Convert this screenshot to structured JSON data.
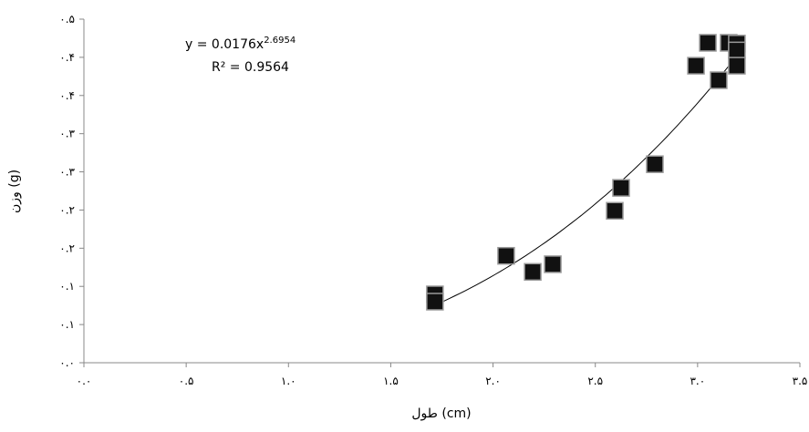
{
  "chart_data": {
    "type": "scatter",
    "x_label": "طول (cm)",
    "y_label": "وزن (g)",
    "x": [
      1.716,
      1.716,
      2.064,
      2.194,
      2.292,
      2.595,
      2.626,
      2.791,
      2.992,
      3.05,
      3.103,
      3.152,
      3.192,
      3.192,
      3.192
    ],
    "values": [
      0.0895,
      0.08,
      0.14,
      0.119,
      0.129,
      0.199,
      0.229,
      0.26,
      0.389,
      0.419,
      0.37,
      0.419,
      0.418,
      0.409,
      0.389
    ],
    "color": "#111111",
    "xlim": [
      0,
      3.5
    ],
    "xticks": [
      {
        "value": 0,
        "label": "۰.۰"
      },
      {
        "value": 0.5,
        "label": "۰.۵"
      },
      {
        "value": 1,
        "label": "۱.۰"
      },
      {
        "value": 1.5,
        "label": "۱.۵"
      },
      {
        "value": 2,
        "label": "۲.۰"
      },
      {
        "value": 2.5,
        "label": "۲.۵"
      },
      {
        "value": 3,
        "label": "۳.۰"
      },
      {
        "value": 3.5,
        "label": "۳.۵"
      }
    ],
    "ylim": [
      0,
      0.45
    ],
    "yticks": [
      {
        "value": 0,
        "label": "۰.۰"
      },
      {
        "value": 0.05,
        "label": "۰.۱"
      },
      {
        "value": 0.1,
        "label": "۰.۱"
      },
      {
        "value": 0.15,
        "label": "۰.۲"
      },
      {
        "value": 0.2,
        "label": "۰.۲"
      },
      {
        "value": 0.25,
        "label": "۰.۳"
      },
      {
        "value": 0.3,
        "label": "۰.۳"
      },
      {
        "value": 0.35,
        "label": "۰.۴"
      },
      {
        "value": 0.4,
        "label": "۰.۴"
      },
      {
        "value": 0.45,
        "label": "۰.۵"
      }
    ],
    "trendline": {
      "type": "power",
      "coefficient": 0.0176,
      "exponent": 2.6954,
      "equation": "y = 0.0176x",
      "r_squared": 0.9564,
      "r_squared_label": "R² = 0.9564"
    }
  }
}
